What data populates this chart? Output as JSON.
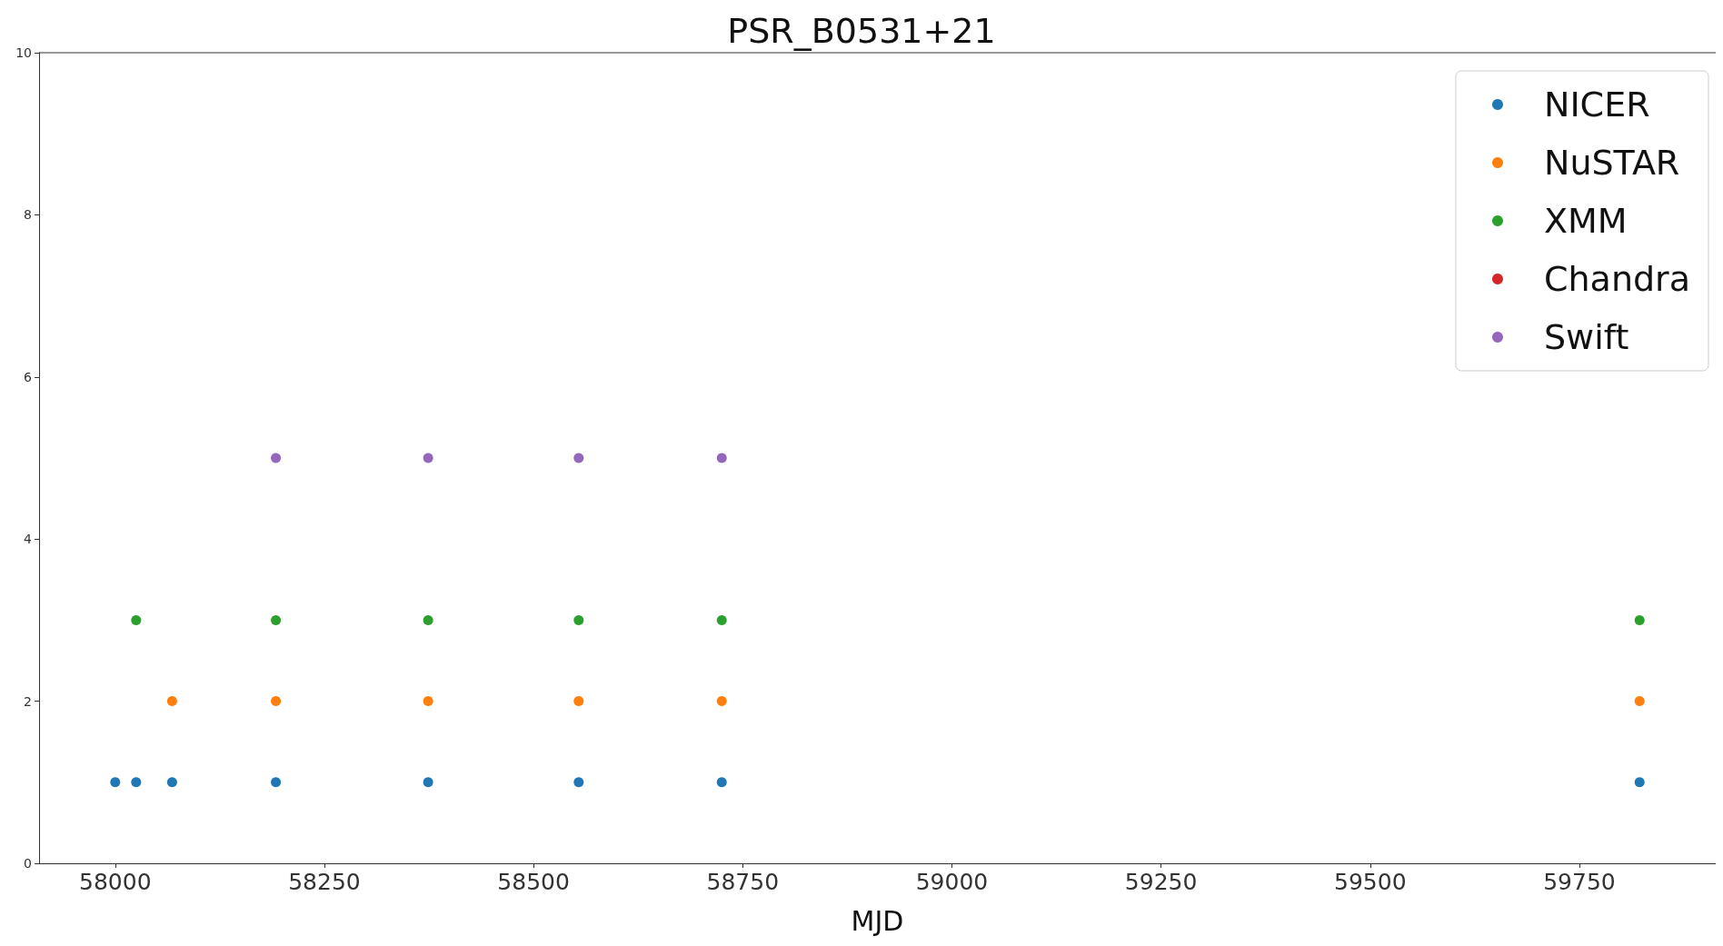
{
  "chart_data": {
    "type": "scatter",
    "title": "PSR_B0531+21",
    "xlabel": "MJD",
    "xlim": [
      57909,
      59913
    ],
    "xticks": [
      58000,
      58250,
      58500,
      58750,
      59000,
      59250,
      59500,
      59750
    ],
    "ylim": [
      0,
      10
    ],
    "yticks": [
      0,
      2,
      4,
      6,
      8,
      10
    ],
    "grid": false,
    "legend": "top right",
    "marker": "circle",
    "series": [
      {
        "name": "NICER",
        "color": "#1f77b4",
        "x": [
          58000,
          58025,
          58068,
          58192,
          58374,
          58554,
          58725,
          59822
        ],
        "values": [
          1,
          1,
          1,
          1,
          1,
          1,
          1,
          1
        ]
      },
      {
        "name": "NuSTAR",
        "color": "#ff7f0e",
        "x": [
          58068,
          58192,
          58374,
          58554,
          58725,
          59822
        ],
        "values": [
          2,
          2,
          2,
          2,
          2,
          2
        ]
      },
      {
        "name": "XMM",
        "color": "#2ca02c",
        "x": [
          58025,
          58192,
          58374,
          58554,
          58725,
          59822
        ],
        "values": [
          3,
          3,
          3,
          3,
          3,
          3
        ]
      },
      {
        "name": "Chandra",
        "color": "#d62728"
      },
      {
        "name": "Swift",
        "color": "#9467bd",
        "x": [
          58192,
          58374,
          58554,
          58725
        ],
        "values": [
          5,
          5,
          5,
          5
        ]
      }
    ]
  }
}
